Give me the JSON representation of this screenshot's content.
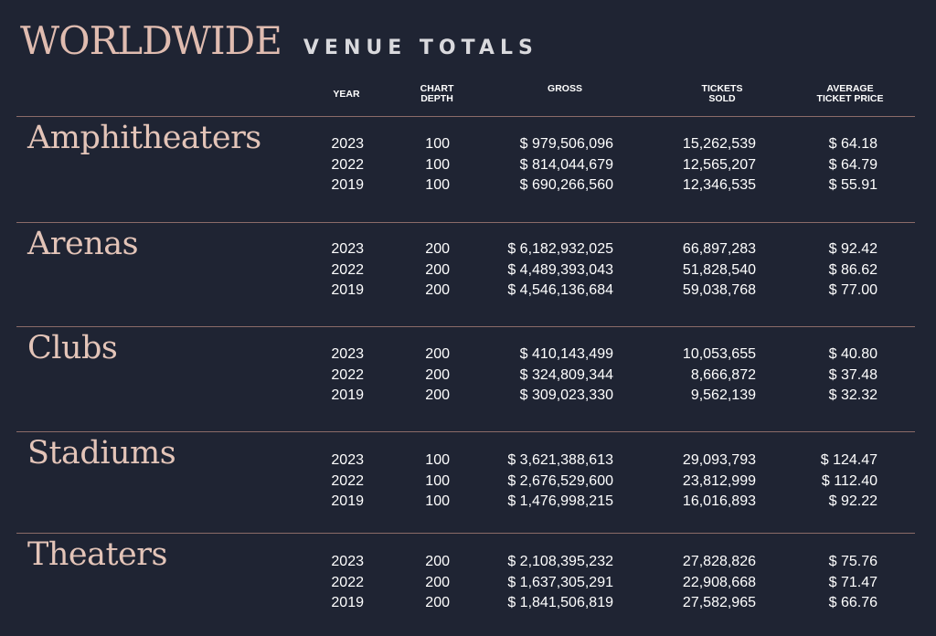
{
  "title": {
    "main": "WORLDWIDE",
    "sub": "VENUE TOTALS"
  },
  "headers": {
    "year": "YEAR",
    "chart_depth": "CHART\nDEPTH",
    "gross": "GROSS",
    "tickets_sold": "TICKETS\nSOLD",
    "avg_ticket_price": "AVERAGE\nTICKET PRICE"
  },
  "colors": {
    "background": "#1f2433",
    "title_accent": "#e0bcb0",
    "divider": "#8b6b68"
  },
  "sections": [
    {
      "name": "Amphitheaters",
      "rows": [
        {
          "year": "2023",
          "depth": "100",
          "gross": "$ 979,506,096",
          "tickets": "15,262,539",
          "avg": "$ 64.18"
        },
        {
          "year": "2022",
          "depth": "100",
          "gross": "$ 814,044,679",
          "tickets": "12,565,207",
          "avg": "$ 64.79"
        },
        {
          "year": "2019",
          "depth": "100",
          "gross": "$ 690,266,560",
          "tickets": "12,346,535",
          "avg": "$ 55.91"
        }
      ]
    },
    {
      "name": "Arenas",
      "rows": [
        {
          "year": "2023",
          "depth": "200",
          "gross": "$ 6,182,932,025",
          "tickets": "66,897,283",
          "avg": "$ 92.42"
        },
        {
          "year": "2022",
          "depth": "200",
          "gross": "$ 4,489,393,043",
          "tickets": "51,828,540",
          "avg": "$ 86.62"
        },
        {
          "year": "2019",
          "depth": "200",
          "gross": "$ 4,546,136,684",
          "tickets": "59,038,768",
          "avg": "$ 77.00"
        }
      ]
    },
    {
      "name": "Clubs",
      "rows": [
        {
          "year": "2023",
          "depth": "200",
          "gross": "$ 410,143,499",
          "tickets": "10,053,655",
          "avg": "$ 40.80"
        },
        {
          "year": "2022",
          "depth": "200",
          "gross": "$ 324,809,344",
          "tickets": "8,666,872",
          "avg": "$ 37.48"
        },
        {
          "year": "2019",
          "depth": "200",
          "gross": "$ 309,023,330",
          "tickets": "9,562,139",
          "avg": "$ 32.32"
        }
      ]
    },
    {
      "name": "Stadiums",
      "rows": [
        {
          "year": "2023",
          "depth": "100",
          "gross": "$ 3,621,388,613",
          "tickets": "29,093,793",
          "avg": "$ 124.47"
        },
        {
          "year": "2022",
          "depth": "100",
          "gross": "$ 2,676,529,600",
          "tickets": "23,812,999",
          "avg": "$ 112.40"
        },
        {
          "year": "2019",
          "depth": "100",
          "gross": "$ 1,476,998,215",
          "tickets": "16,016,893",
          "avg": "$ 92.22"
        }
      ]
    },
    {
      "name": "Theaters",
      "rows": [
        {
          "year": "2023",
          "depth": "200",
          "gross": "$ 2,108,395,232",
          "tickets": "27,828,826",
          "avg": "$ 75.76"
        },
        {
          "year": "2022",
          "depth": "200",
          "gross": "$ 1,637,305,291",
          "tickets": "22,908,668",
          "avg": "$ 71.47"
        },
        {
          "year": "2019",
          "depth": "200",
          "gross": "$ 1,841,506,819",
          "tickets": "27,582,965",
          "avg": "$ 66.76"
        }
      ]
    }
  ]
}
